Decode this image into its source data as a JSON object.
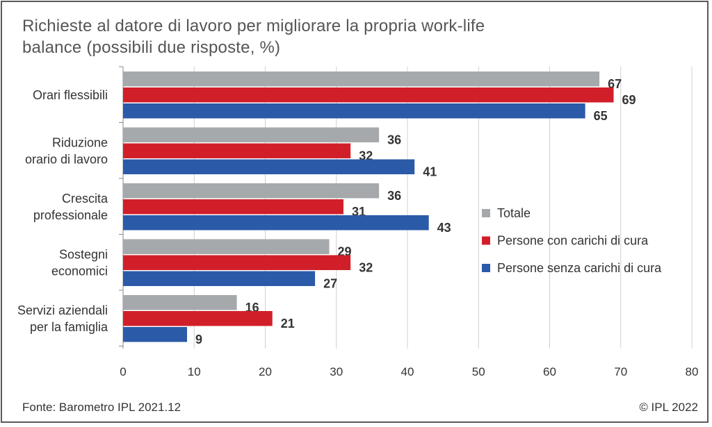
{
  "chart_data": {
    "type": "bar",
    "orientation": "horizontal",
    "title_lines": [
      "Richieste al datore di lavoro per migliorare la propria work-life",
      "balance (possibili due risposte, %)"
    ],
    "categories": [
      [
        "Orari flessibili"
      ],
      [
        "Riduzione",
        "orario di lavoro"
      ],
      [
        "Crescita",
        "professionale"
      ],
      [
        "Sostegni",
        "economici"
      ],
      [
        "Servizi aziendali",
        "per la famiglia"
      ]
    ],
    "series": [
      {
        "name": "Totale",
        "color": "#a5a9ab",
        "values": [
          67,
          36,
          36,
          29,
          16
        ]
      },
      {
        "name": "Persone con carichi di cura",
        "color": "#d11f2a",
        "values": [
          69,
          32,
          31,
          32,
          21
        ]
      },
      {
        "name": "Persone senza carichi di cura",
        "color": "#2b5aa8",
        "values": [
          65,
          41,
          43,
          27,
          9
        ]
      }
    ],
    "xlim": [
      0,
      80
    ],
    "xticks": [
      0,
      10,
      20,
      30,
      40,
      50,
      60,
      70,
      80
    ],
    "grid": "vertical",
    "legend_position": "right"
  },
  "footer": {
    "source": "Fonte: Barometro IPL 2021.12",
    "copyright": "© IPL 2022"
  }
}
